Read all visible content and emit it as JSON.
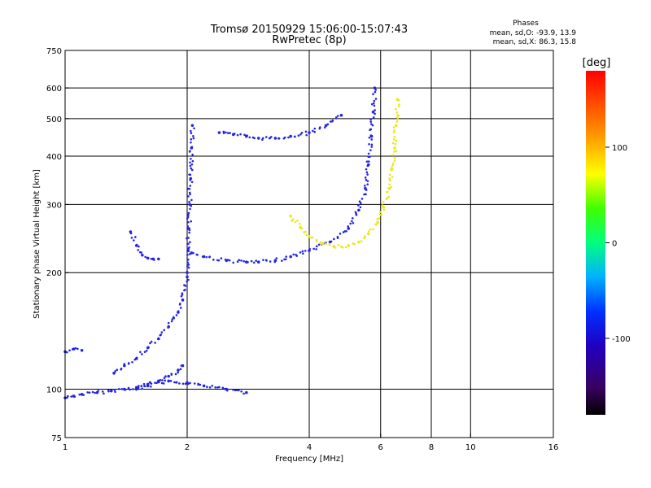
{
  "chart_data": {
    "type": "scatter",
    "title": "Tromsø 20150929 15:06:00-15:07:43",
    "subtitle": "RwPretec (8p)",
    "xlabel": "Frequency [MHz]",
    "ylabel": "Stationary phase Virtual Height [km]",
    "x_scale": "log",
    "y_scale": "log",
    "xlim": [
      1,
      16
    ],
    "ylim": [
      75,
      750
    ],
    "x_ticks": [
      1,
      2,
      4,
      6,
      8,
      10,
      16
    ],
    "x_tick_labels": [
      "1",
      "2",
      "4",
      "6",
      "8",
      "10",
      "16"
    ],
    "y_ticks": [
      75,
      100,
      200,
      300,
      400,
      500,
      600,
      750
    ],
    "y_tick_labels": [
      "75",
      "100",
      "200",
      "300",
      "400",
      "500",
      "600",
      "750"
    ],
    "x_grid": [
      2,
      4,
      6,
      8,
      10
    ],
    "y_grid": [
      100,
      200,
      300,
      400,
      500,
      600
    ],
    "phase_info": {
      "heading": "Phases",
      "line1": "mean, sd,O: -93.9, 13.9",
      "line2": "mean, sd,X:  86.3, 15.8"
    },
    "colorbar": {
      "label": "[deg]",
      "range": [
        -180,
        180
      ],
      "ticks": [
        100,
        0,
        -100
      ],
      "tick_labels": [
        "100",
        "0",
        "-100"
      ]
    },
    "series": [
      {
        "mode": "O",
        "color": "#2323e6",
        "traces": [
          {
            "x": [
              1.0,
              1.05,
              1.1,
              1.2,
              1.3,
              1.4,
              1.5,
              1.6,
              1.7,
              1.8,
              1.9,
              1.95
            ],
            "y": [
              95,
              96,
              97,
              98,
              99,
              100,
              101,
              103,
              105,
              108,
              112,
              115
            ]
          },
          {
            "x": [
              1.32,
              1.4,
              1.5,
              1.6,
              1.7,
              1.8,
              1.9,
              1.95,
              2.0
            ],
            "y": [
              110,
              115,
              120,
              128,
              135,
              145,
              158,
              170,
              195
            ]
          },
          {
            "x": [
              2.0,
              2.01,
              2.02,
              2.03,
              2.04,
              2.05,
              2.06
            ],
            "y": [
              200,
              230,
              260,
              300,
              350,
              420,
              480
            ]
          },
          {
            "x": [
              2.05,
              2.2,
              2.5,
              2.8,
              3.0,
              3.3,
              3.6,
              4.0,
              4.5,
              5.0,
              5.3,
              5.5,
              5.6,
              5.7,
              5.75,
              5.8
            ],
            "y": [
              225,
              220,
              215,
              213,
              213,
              215,
              220,
              228,
              240,
              260,
              290,
              330,
              380,
              450,
              520,
              600
            ]
          },
          {
            "x": [
              1.45,
              1.5,
              1.55,
              1.6,
              1.65,
              1.7
            ],
            "y": [
              255,
              235,
              222,
              218,
              217,
              217
            ]
          },
          {
            "x": [
              2.4,
              2.6,
              2.8,
              3.0,
              3.3,
              3.6,
              4.0,
              4.4,
              4.8
            ],
            "y": [
              460,
              455,
              450,
              445,
              445,
              450,
              460,
              480,
              510
            ]
          },
          {
            "x": [
              1.0,
              1.05,
              1.1
            ],
            "y": [
              125,
              127,
              126
            ]
          },
          {
            "x": [
              1.5,
              1.6,
              1.8,
              2.0,
              2.2,
              2.5,
              2.8
            ],
            "y": [
              100,
              102,
              105,
              104,
              102,
              100,
              98
            ]
          }
        ]
      },
      {
        "mode": "X",
        "color": "#e8e81c",
        "traces": [
          {
            "x": [
              3.6,
              3.8,
              4.0,
              4.3,
              4.6,
              5.0,
              5.3,
              5.6,
              5.9,
              6.1,
              6.3,
              6.4,
              6.5,
              6.55,
              6.6
            ],
            "y": [
              280,
              262,
              248,
              238,
              234,
              235,
              240,
              252,
              270,
              295,
              330,
              370,
              420,
              480,
              560
            ]
          }
        ]
      }
    ]
  }
}
